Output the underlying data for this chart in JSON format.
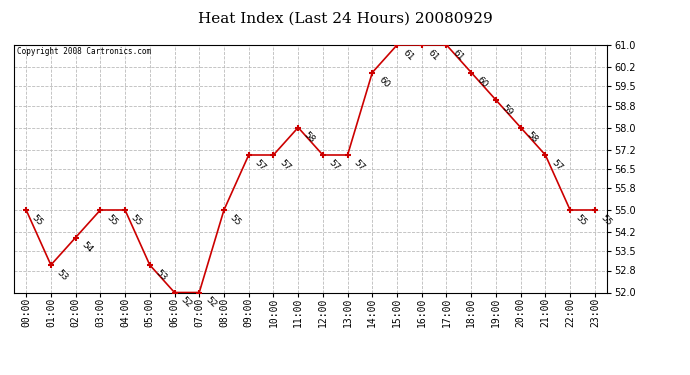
{
  "title": "Heat Index (Last 24 Hours) 20080929",
  "copyright": "Copyright 2008 Cartronics.com",
  "hours": [
    "00:00",
    "01:00",
    "02:00",
    "03:00",
    "04:00",
    "05:00",
    "06:00",
    "07:00",
    "08:00",
    "09:00",
    "10:00",
    "11:00",
    "12:00",
    "13:00",
    "14:00",
    "15:00",
    "16:00",
    "17:00",
    "18:00",
    "19:00",
    "20:00",
    "21:00",
    "22:00",
    "23:00"
  ],
  "values": [
    55,
    53,
    54,
    55,
    55,
    53,
    52,
    52,
    55,
    57,
    57,
    58,
    57,
    57,
    60,
    61,
    61,
    61,
    60,
    59,
    58,
    57,
    55,
    55
  ],
  "ylim": [
    52.0,
    61.0
  ],
  "yticks": [
    52.0,
    52.8,
    53.5,
    54.2,
    55.0,
    55.8,
    56.5,
    57.2,
    58.0,
    58.8,
    59.5,
    60.2,
    61.0
  ],
  "line_color": "#cc0000",
  "marker_color": "#cc0000",
  "bg_color": "#ffffff",
  "grid_color": "#bbbbbb",
  "title_fontsize": 11,
  "label_fontsize": 7,
  "annot_fontsize": 6.5
}
